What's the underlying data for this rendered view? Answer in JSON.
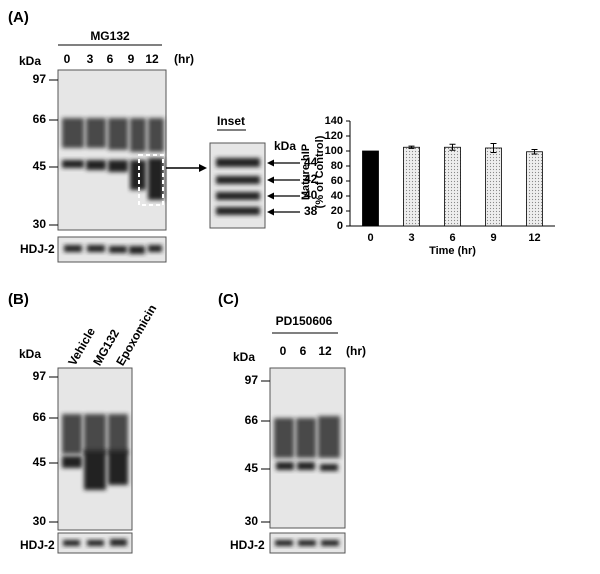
{
  "panel_a": {
    "label": "(A)",
    "treatment": "MG132",
    "lanes": [
      "0",
      "3",
      "6",
      "9",
      "12"
    ],
    "unit": "(hr)",
    "kda": "kDa",
    "markers": [
      "97",
      "66",
      "45",
      "30"
    ],
    "loading": "HDJ-2",
    "inset": {
      "title": "Inset",
      "kda": "kDa",
      "markers": [
        "44",
        "42",
        "40",
        "38"
      ]
    }
  },
  "panel_b": {
    "label": "(B)",
    "kda": "kDa",
    "lanes": [
      "Vehicle",
      "MG132",
      "Epoxomicin"
    ],
    "markers": [
      "97",
      "66",
      "45",
      "30"
    ],
    "loading": "HDJ-2"
  },
  "panel_c": {
    "label": "(C)",
    "treatment": "PD150606",
    "lanes": [
      "0",
      "6",
      "12"
    ],
    "unit": "(hr)",
    "kda": "kDa",
    "markers": [
      "97",
      "66",
      "45",
      "30"
    ],
    "loading": "HDJ-2"
  },
  "chart_data": {
    "type": "bar",
    "ylabel": [
      "Mature hIP",
      "(% of Control)"
    ],
    "xlabel": "Time (hr)",
    "categories": [
      "0",
      "3",
      "6",
      "9",
      "12"
    ],
    "values": [
      100,
      105,
      105,
      104,
      99
    ],
    "errors": [
      0,
      1.5,
      4,
      6,
      3
    ],
    "colors": [
      "#000000",
      "#dcdcdc",
      "#dcdcdc",
      "#dcdcdc",
      "#dcdcdc"
    ],
    "ylim": [
      0,
      140
    ],
    "yticks": [
      0,
      20,
      40,
      60,
      80,
      100,
      120,
      140
    ]
  }
}
